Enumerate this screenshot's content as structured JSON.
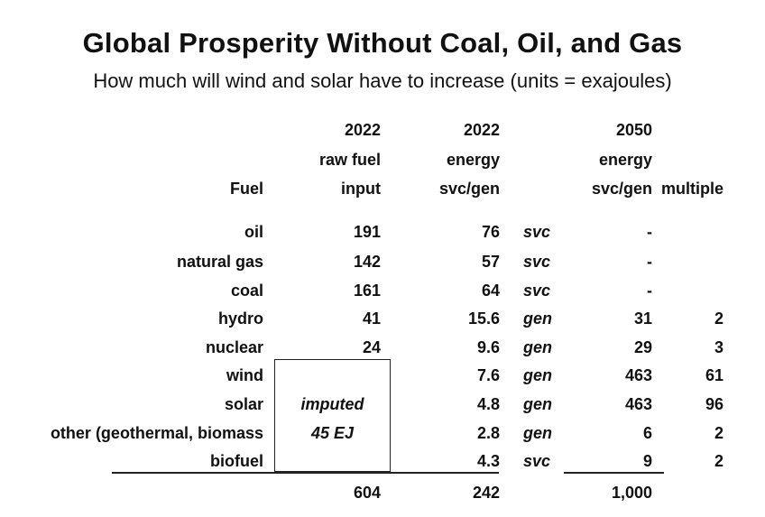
{
  "title": "Global Prosperity Without Coal, Oil, and Gas",
  "subtitle": "How much will wind and solar have to increase (units = exajoules)",
  "headers": {
    "fuel": "Fuel",
    "raw": [
      "2022",
      "raw fuel",
      "input"
    ],
    "e2022": [
      "2022",
      "energy",
      "svc/gen"
    ],
    "e2050": [
      "2050",
      "energy",
      "svc/gen"
    ],
    "multiple": "multiple"
  },
  "rows": [
    {
      "fuel": "oil",
      "raw": "191",
      "e2022": "76",
      "tag": "svc",
      "e2050": "-",
      "multiple": ""
    },
    {
      "fuel": "natural gas",
      "raw": "142",
      "e2022": "57",
      "tag": "svc",
      "e2050": "-",
      "multiple": ""
    },
    {
      "fuel": "coal",
      "raw": "161",
      "e2022": "64",
      "tag": "svc",
      "e2050": "-",
      "multiple": ""
    },
    {
      "fuel": "hydro",
      "raw": "41",
      "e2022": "15.6",
      "tag": "gen",
      "e2050": "31",
      "multiple": "2"
    },
    {
      "fuel": "nuclear",
      "raw": "24",
      "e2022": "9.6",
      "tag": "gen",
      "e2050": "29",
      "multiple": "3"
    },
    {
      "fuel": "wind",
      "raw": "",
      "e2022": "7.6",
      "tag": "gen",
      "e2050": "463",
      "multiple": "61"
    },
    {
      "fuel": "solar",
      "raw": "",
      "e2022": "4.8",
      "tag": "gen",
      "e2050": "463",
      "multiple": "96"
    },
    {
      "fuel": "other (geothermal, biomass",
      "raw": "",
      "e2022": "2.8",
      "tag": "gen",
      "e2050": "6",
      "multiple": "2"
    },
    {
      "fuel": "biofuel",
      "raw": "",
      "e2022": "4.3",
      "tag": "svc",
      "e2050": "9",
      "multiple": "2"
    }
  ],
  "imputed_box": [
    "imputed",
    "45 EJ"
  ],
  "totals": {
    "raw": "604",
    "e2022": "242",
    "e2050": "1,000"
  }
}
